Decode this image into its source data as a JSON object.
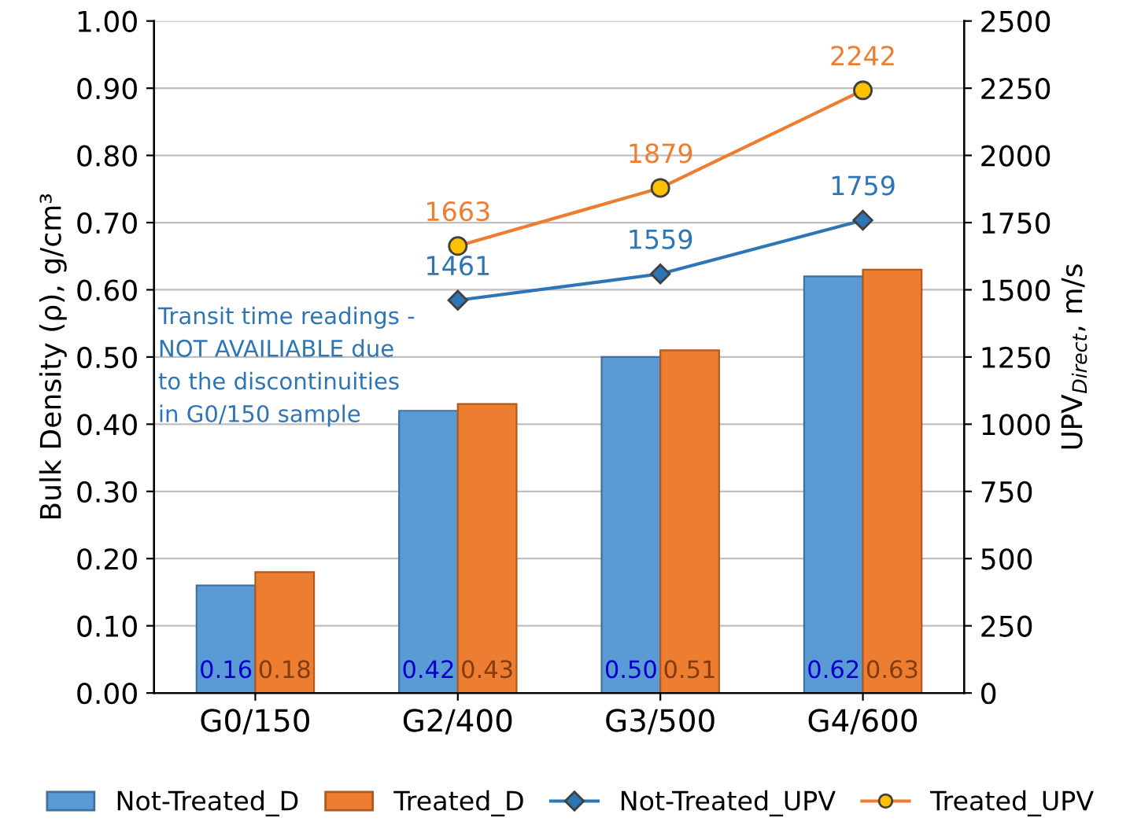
{
  "chart_data": {
    "type": "bar",
    "categories": [
      "G0/150",
      "G2/400",
      "G3/500",
      "G4/600"
    ],
    "ylabel": "Bulk Density (ρ), g/cm³",
    "y2label": "UPV$_{Direct}$, m/s",
    "ylim": [
      0,
      1.0
    ],
    "yticks": [
      {
        "value": 0,
        "label": "0.00"
      },
      {
        "value": 0.1,
        "label": "0.10"
      },
      {
        "value": 0.2,
        "label": "0.20"
      },
      {
        "value": 0.3,
        "label": "0.30"
      },
      {
        "value": 0.4,
        "label": "0.40"
      },
      {
        "value": 0.5,
        "label": "0.50"
      },
      {
        "value": 0.6,
        "label": "0.60"
      },
      {
        "value": 0.7,
        "label": "0.70"
      },
      {
        "value": 0.8,
        "label": "0.80"
      },
      {
        "value": 0.9,
        "label": "0.90"
      },
      {
        "value": 1.0,
        "label": "1.00"
      }
    ],
    "y2lim": [
      0,
      2500
    ],
    "y2ticks": [
      0,
      250,
      500,
      750,
      1000,
      1250,
      1500,
      1750,
      2000,
      2250,
      2500
    ],
    "grid": "y",
    "legend": "bottom",
    "data_labels": true,
    "series": [
      {
        "name": "Not-Treated_D",
        "color": "#5b9bd5",
        "values": [
          0.16,
          0.42,
          0.5,
          0.62
        ],
        "value_labels": [
          "0.16",
          "0.42",
          "0.50",
          "0.62"
        ]
      },
      {
        "name": "Treated_D",
        "color": "#ed7d31",
        "values": [
          0.18,
          0.43,
          0.51,
          0.63
        ],
        "value_labels": [
          "0.18",
          "0.43",
          "0.51",
          "0.63"
        ]
      },
      {
        "name": "Not-Treated_UPV",
        "type": "line",
        "axis": "y2",
        "marker": "diamond",
        "color": "#2e75b6",
        "values": [
          null,
          1461,
          1559,
          1759
        ]
      },
      {
        "name": "Treated_UPV",
        "type": "line",
        "axis": "y2",
        "marker": "circle",
        "color": "#ed7d31",
        "values": [
          null,
          1663,
          1879,
          2242
        ]
      }
    ],
    "annotations": [
      "Transit time readings - NOT AVAILIABLE due to the discontinuities in G0/150 sample"
    ]
  }
}
